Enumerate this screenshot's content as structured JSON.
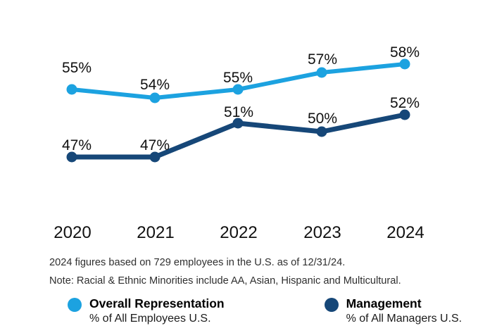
{
  "chart_data": {
    "type": "line",
    "title": "",
    "xlabel": "",
    "ylabel": "",
    "categories": [
      "2020",
      "2021",
      "2022",
      "2023",
      "2024"
    ],
    "unit": "%",
    "series": [
      {
        "name": "Overall Representation",
        "values": [
          55,
          54,
          55,
          57,
          58
        ],
        "labels": [
          "55%",
          "54%",
          "55%",
          "57%",
          "58%"
        ],
        "color": "#1CA2E0"
      },
      {
        "name": "Management",
        "values": [
          47,
          47,
          51,
          50,
          52
        ],
        "labels": [
          "47%",
          "47%",
          "51%",
          "50%",
          "52%"
        ],
        "color": "#164778"
      }
    ],
    "ylim": [
      44,
      62
    ],
    "grid": false,
    "axes_visible": false,
    "data_labels": true,
    "legend_position": "bottom"
  },
  "notes": {
    "line1": "2024 figures based on 729 employees in the U.S. as of 12/31/24.",
    "line2": "Note: Racial & Ethnic Minorities include AA, Asian, Hispanic and Multicultural."
  },
  "legend": [
    {
      "title": "Overall Representation",
      "subtitle": "% of All Employees U.S.",
      "color": "#1CA2E0"
    },
    {
      "title": "Management",
      "subtitle": "% of All Managers U.S.",
      "color": "#164778"
    }
  ]
}
